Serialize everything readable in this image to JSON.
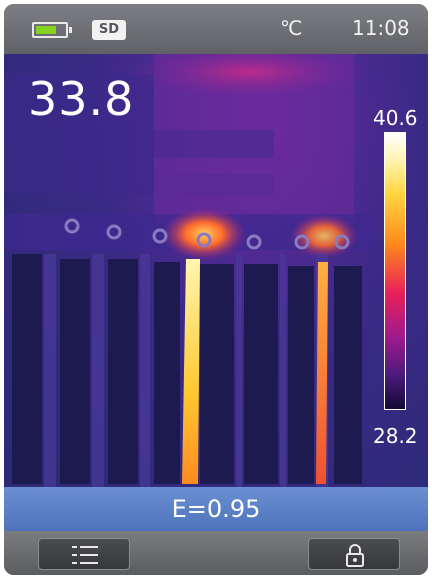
{
  "status_bar": {
    "battery_icon": "battery-icon",
    "battery_level": 0.7,
    "storage_label": "SD",
    "unit": "℃",
    "time": "11:08"
  },
  "thermal_view": {
    "center_temperature": "33.8",
    "scale_max": "40.6",
    "scale_min": "28.2",
    "palette": "iron"
  },
  "emissivity": "E=0.95",
  "soft_keys": {
    "left_icon": "menu-list-icon",
    "right_icon": "lock-icon"
  },
  "colors": {
    "status_bar": "#6e7075",
    "emissivity_bar": "#5a7ec4",
    "battery_fill": "#86d21f"
  }
}
